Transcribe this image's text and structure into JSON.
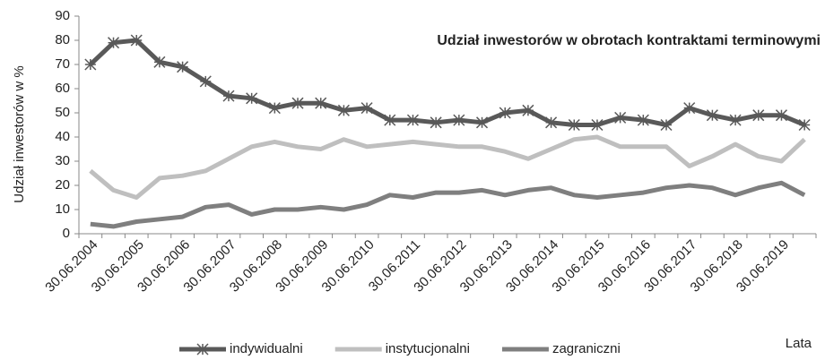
{
  "chart_data": {
    "type": "line",
    "title": "Udział inwestorów w obrotach kontraktami terminowymi",
    "y_label": "Udział inwestorów w %",
    "x_label": "Lata",
    "categories": [
      "30.06.2004",
      null,
      "30.06.2005",
      null,
      "30.06.2006",
      null,
      "30.06.2007",
      null,
      "30.06.2008",
      null,
      "30.06.2009",
      null,
      "30.06.2010",
      null,
      "30.06.2011",
      null,
      "30.06.2012",
      null,
      "30.06.2013",
      null,
      "30.06.2014",
      null,
      "30.06.2015",
      null,
      "30.06.2016",
      null,
      "30.06.2017",
      null,
      "30.06.2018",
      null,
      "30.06.2019",
      null
    ],
    "series": [
      {
        "name": "indywidualni",
        "color": "#595959",
        "marker": "star",
        "values": [
          70,
          79,
          80,
          71,
          69,
          63,
          57,
          56,
          52,
          54,
          54,
          51,
          52,
          47,
          47,
          46,
          47,
          46,
          50,
          51,
          46,
          45,
          45,
          48,
          47,
          45,
          52,
          49,
          47,
          49,
          49,
          45
        ]
      },
      {
        "name": "instytucjonalni",
        "color": "#bfbfbf",
        "values": [
          26,
          18,
          15,
          23,
          24,
          26,
          31,
          36,
          38,
          36,
          35,
          39,
          36,
          37,
          38,
          37,
          36,
          36,
          34,
          31,
          35,
          39,
          40,
          36,
          36,
          36,
          28,
          32,
          37,
          32,
          30,
          39
        ]
      },
      {
        "name": "zagraniczni",
        "color": "#7f7f7f",
        "values": [
          4,
          3,
          5,
          6,
          7,
          11,
          12,
          8,
          10,
          10,
          11,
          10,
          12,
          16,
          15,
          17,
          17,
          18,
          16,
          18,
          19,
          16,
          15,
          16,
          17,
          19,
          20,
          19,
          16,
          19,
          21,
          16
        ]
      }
    ],
    "ylim": [
      0,
      90
    ],
    "yticks": [
      0,
      10,
      20,
      30,
      40,
      50,
      60,
      70,
      80,
      90
    ],
    "grid": false,
    "legend": "bottom"
  }
}
